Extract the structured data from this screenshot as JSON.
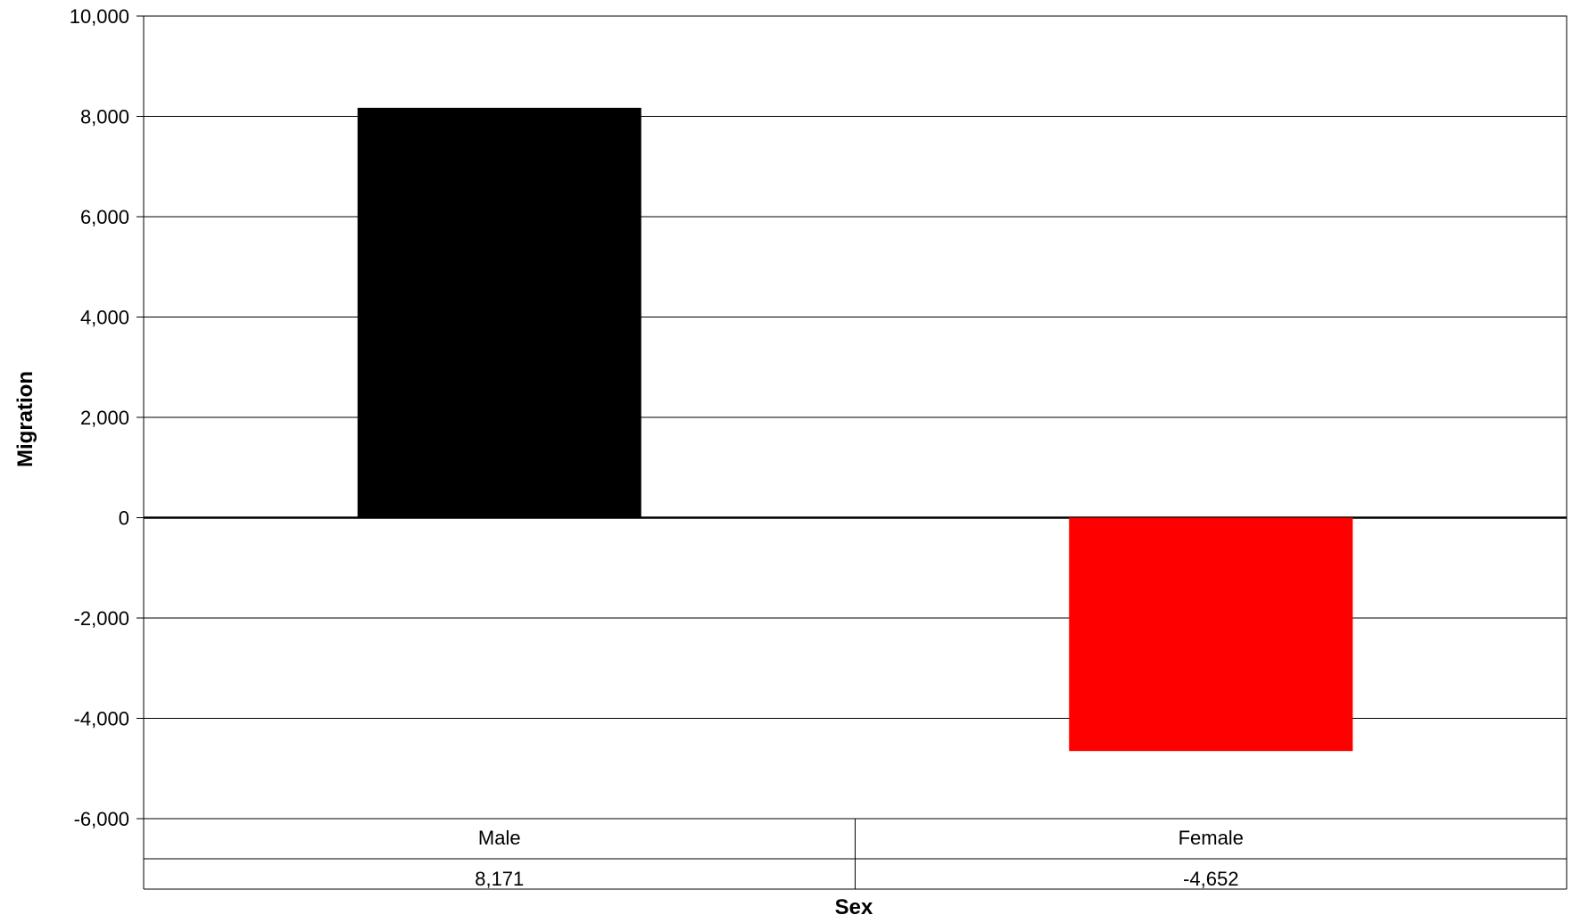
{
  "chart_data": {
    "type": "bar",
    "title": "",
    "xlabel": "Sex",
    "ylabel": "Migration",
    "categories": [
      "Male",
      "Female"
    ],
    "values": [
      8171,
      -4652
    ],
    "data_table": [
      "8,171",
      "-4,652"
    ],
    "colors": [
      "#000000",
      "#ff0000"
    ],
    "ylim": [
      -6000,
      10000
    ],
    "yticks": [
      10000,
      8000,
      6000,
      4000,
      2000,
      0,
      -2000,
      -4000,
      -6000
    ],
    "ytick_labels": [
      "10,000",
      "8,000",
      "6,000",
      "4,000",
      "2,000",
      "0",
      "-2,000",
      "-4,000",
      "-6,000"
    ],
    "grid": true,
    "legend": "none"
  }
}
